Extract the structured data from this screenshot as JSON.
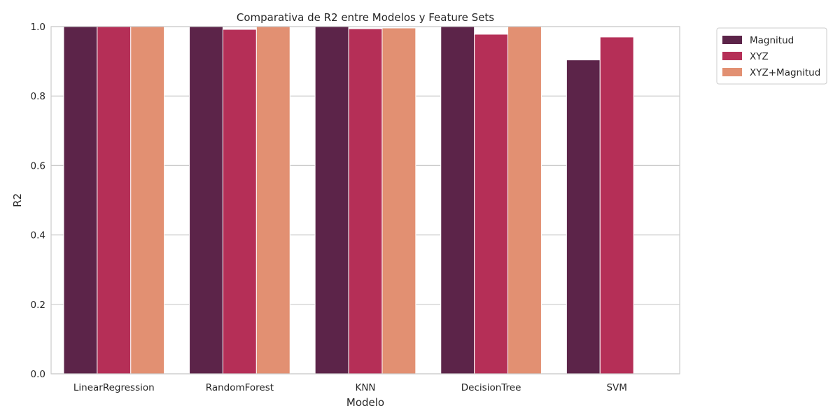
{
  "chart_data": {
    "type": "bar",
    "title": "Comparativa de R2 entre Modelos y Feature Sets",
    "xlabel": "Modelo",
    "ylabel": "R2",
    "ylim": [
      0,
      1.0
    ],
    "yticks": [
      "0.0",
      "0.2",
      "0.4",
      "0.6",
      "0.8",
      "1.0"
    ],
    "grid": "horizontal",
    "legend_position": "outside-top-right",
    "categories": [
      "LinearRegression",
      "RandomForest",
      "KNN",
      "DecisionTree",
      "SVM"
    ],
    "series": [
      {
        "name": "Magnitud",
        "color": "#5c2449",
        "values": [
          1.0,
          1.0,
          1.0,
          1.0,
          0.904
        ]
      },
      {
        "name": "XYZ",
        "color": "#b52f57",
        "values": [
          1.0,
          0.992,
          0.994,
          0.978,
          0.97
        ]
      },
      {
        "name": "XYZ+Magnitud",
        "color": "#e29072",
        "values": [
          1.0,
          1.0,
          0.996,
          1.0,
          null
        ]
      }
    ]
  }
}
